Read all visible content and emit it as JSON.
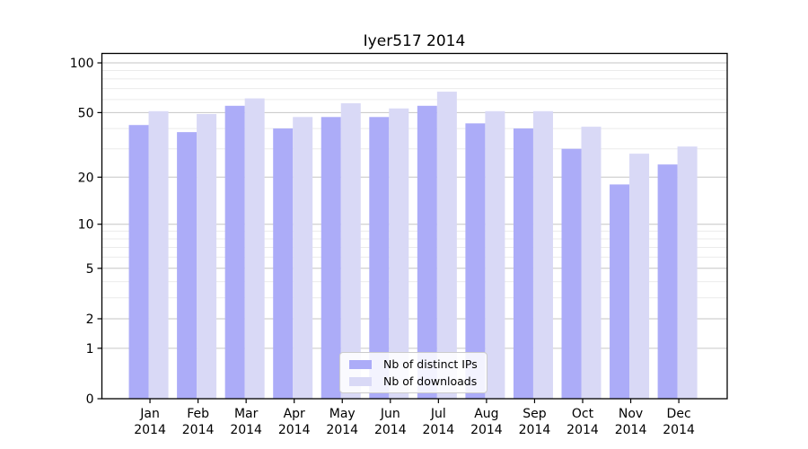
{
  "chart_data": {
    "type": "bar",
    "title": "Iyer517 2014",
    "categories": [
      "Jan",
      "Feb",
      "Mar",
      "Apr",
      "May",
      "Jun",
      "Jul",
      "Aug",
      "Sep",
      "Oct",
      "Nov",
      "Dec"
    ],
    "x_sublabel": "2014",
    "series": [
      {
        "name": "Nb of distinct IPs",
        "color": "#acacf8",
        "values": [
          42,
          38,
          55,
          40,
          47,
          47,
          55,
          43,
          40,
          30,
          18,
          24
        ]
      },
      {
        "name": "Nb of downloads",
        "color": "#d9d9f6",
        "values": [
          51,
          49,
          61,
          47,
          57,
          53,
          67,
          51,
          51,
          41,
          28,
          31
        ]
      }
    ],
    "yscale": "log1p",
    "ylim": [
      0,
      114
    ],
    "yticks": [
      0,
      1,
      2,
      5,
      10,
      20,
      50,
      100
    ],
    "minor_gridlines": [
      1,
      2,
      3,
      4,
      5,
      6,
      7,
      8,
      9,
      10,
      20,
      30,
      40,
      50,
      60,
      70,
      80,
      90,
      100
    ],
    "grid": true,
    "legend_position": "lower center",
    "xlabel": "",
    "ylabel": ""
  },
  "colors": {
    "background": "#ffffff",
    "axis": "#000000",
    "grid_major": "#c6c6c6",
    "grid_minor": "#ebebeb",
    "text": "#000000"
  }
}
